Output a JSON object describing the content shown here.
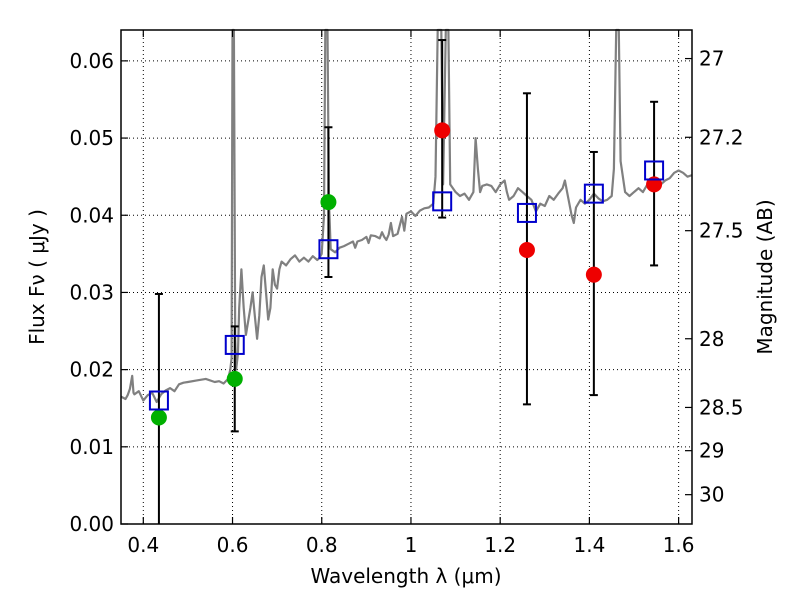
{
  "chart_data": {
    "type": "scatter",
    "xlabel": "Wavelength  λ (μm)",
    "ylabel": "Flux  Fν ( μJy )",
    "ylabel_right": "Magnitude (AB)",
    "xlim": [
      0.35,
      1.63
    ],
    "ylim": [
      0.0,
      0.064
    ],
    "grid": true,
    "x_ticks": [
      {
        "value": 0.4,
        "label": "0.4"
      },
      {
        "value": 0.6,
        "label": "0.6"
      },
      {
        "value": 0.8,
        "label": "0.8"
      },
      {
        "value": 1.0,
        "label": "1"
      },
      {
        "value": 1.2,
        "label": "1.2"
      },
      {
        "value": 1.4,
        "label": "1.4"
      },
      {
        "value": 1.6,
        "label": "1.6"
      }
    ],
    "y_ticks": [
      {
        "value": 0.0,
        "label": "0.00"
      },
      {
        "value": 0.01,
        "label": "0.01"
      },
      {
        "value": 0.02,
        "label": "0.02"
      },
      {
        "value": 0.03,
        "label": "0.03"
      },
      {
        "value": 0.04,
        "label": "0.04"
      },
      {
        "value": 0.05,
        "label": "0.05"
      },
      {
        "value": 0.06,
        "label": "0.06"
      }
    ],
    "right_ticks": [
      {
        "flux": 0.0603,
        "label": "27"
      },
      {
        "flux": 0.0501,
        "label": "27.2"
      },
      {
        "flux": 0.038,
        "label": "27.5"
      },
      {
        "flux": 0.024,
        "label": "28"
      },
      {
        "flux": 0.0151,
        "label": "28.5"
      },
      {
        "flux": 0.0095,
        "label": "29"
      },
      {
        "flux": 0.0038,
        "label": "30"
      }
    ],
    "series": [
      {
        "kind": "spectrum",
        "color": "#808080",
        "points": [
          [
            0.35,
            0.0165
          ],
          [
            0.36,
            0.0162
          ],
          [
            0.365,
            0.0167
          ],
          [
            0.37,
            0.0175
          ],
          [
            0.375,
            0.0192
          ],
          [
            0.378,
            0.017
          ],
          [
            0.38,
            0.0168
          ],
          [
            0.39,
            0.0172
          ],
          [
            0.4,
            0.016
          ],
          [
            0.41,
            0.0167
          ],
          [
            0.42,
            0.017
          ],
          [
            0.43,
            0.0158
          ],
          [
            0.44,
            0.0168
          ],
          [
            0.45,
            0.0173
          ],
          [
            0.46,
            0.0176
          ],
          [
            0.47,
            0.0172
          ],
          [
            0.48,
            0.0181
          ],
          [
            0.49,
            0.0183
          ],
          [
            0.5,
            0.0184
          ],
          [
            0.52,
            0.0186
          ],
          [
            0.54,
            0.0188
          ],
          [
            0.56,
            0.0184
          ],
          [
            0.57,
            0.0185
          ],
          [
            0.58,
            0.0182
          ],
          [
            0.59,
            0.0188
          ],
          [
            0.595,
            0.02
          ],
          [
            0.598,
            0.0215
          ],
          [
            0.6,
            0.064
          ],
          [
            0.603,
            0.064
          ],
          [
            0.606,
            0.024
          ],
          [
            0.608,
            0.02
          ],
          [
            0.612,
            0.022
          ],
          [
            0.615,
            0.028
          ],
          [
            0.62,
            0.033
          ],
          [
            0.625,
            0.028
          ],
          [
            0.63,
            0.0245
          ],
          [
            0.64,
            0.028
          ],
          [
            0.645,
            0.03
          ],
          [
            0.65,
            0.027
          ],
          [
            0.655,
            0.024
          ],
          [
            0.66,
            0.027
          ],
          [
            0.665,
            0.032
          ],
          [
            0.67,
            0.0335
          ],
          [
            0.675,
            0.03
          ],
          [
            0.68,
            0.0265
          ],
          [
            0.685,
            0.028
          ],
          [
            0.69,
            0.033
          ],
          [
            0.695,
            0.031
          ],
          [
            0.7,
            0.0305
          ],
          [
            0.705,
            0.033
          ],
          [
            0.71,
            0.034
          ],
          [
            0.72,
            0.0335
          ],
          [
            0.73,
            0.0343
          ],
          [
            0.74,
            0.0348
          ],
          [
            0.75,
            0.034
          ],
          [
            0.76,
            0.0345
          ],
          [
            0.77,
            0.034
          ],
          [
            0.78,
            0.0347
          ],
          [
            0.79,
            0.0342
          ],
          [
            0.795,
            0.0345
          ],
          [
            0.8,
            0.035
          ],
          [
            0.805,
            0.04
          ],
          [
            0.808,
            0.064
          ],
          [
            0.813,
            0.064
          ],
          [
            0.816,
            0.042
          ],
          [
            0.82,
            0.0356
          ],
          [
            0.83,
            0.0352
          ],
          [
            0.84,
            0.0358
          ],
          [
            0.85,
            0.036
          ],
          [
            0.86,
            0.0363
          ],
          [
            0.87,
            0.0366
          ],
          [
            0.875,
            0.0358
          ],
          [
            0.88,
            0.0366
          ],
          [
            0.89,
            0.0368
          ],
          [
            0.9,
            0.0372
          ],
          [
            0.905,
            0.0364
          ],
          [
            0.91,
            0.0374
          ],
          [
            0.92,
            0.0373
          ],
          [
            0.93,
            0.037
          ],
          [
            0.935,
            0.0378
          ],
          [
            0.94,
            0.0372
          ],
          [
            0.945,
            0.0368
          ],
          [
            0.95,
            0.0375
          ],
          [
            0.955,
            0.039
          ],
          [
            0.96,
            0.0373
          ],
          [
            0.97,
            0.0376
          ],
          [
            0.98,
            0.0398
          ],
          [
            0.985,
            0.038
          ],
          [
            0.99,
            0.0402
          ],
          [
            1.0,
            0.0405
          ],
          [
            1.01,
            0.0399
          ],
          [
            1.02,
            0.0406
          ],
          [
            1.03,
            0.0409
          ],
          [
            1.04,
            0.041
          ],
          [
            1.05,
            0.0415
          ],
          [
            1.055,
            0.045
          ],
          [
            1.06,
            0.064
          ],
          [
            1.068,
            0.064
          ],
          [
            1.072,
            0.044
          ],
          [
            1.078,
            0.064
          ],
          [
            1.084,
            0.064
          ],
          [
            1.088,
            0.044
          ],
          [
            1.1,
            0.043
          ],
          [
            1.11,
            0.0425
          ],
          [
            1.12,
            0.0428
          ],
          [
            1.13,
            0.042
          ],
          [
            1.14,
            0.043
          ],
          [
            1.145,
            0.05
          ],
          [
            1.15,
            0.046
          ],
          [
            1.155,
            0.043
          ],
          [
            1.16,
            0.0438
          ],
          [
            1.17,
            0.044
          ],
          [
            1.18,
            0.0438
          ],
          [
            1.19,
            0.043
          ],
          [
            1.2,
            0.044
          ],
          [
            1.21,
            0.0445
          ],
          [
            1.215,
            0.043
          ],
          [
            1.22,
            0.042
          ],
          [
            1.23,
            0.0425
          ],
          [
            1.24,
            0.0435
          ],
          [
            1.25,
            0.043
          ],
          [
            1.26,
            0.0425
          ],
          [
            1.27,
            0.042
          ],
          [
            1.28,
            0.0405
          ],
          [
            1.29,
            0.0415
          ],
          [
            1.3,
            0.0412
          ],
          [
            1.31,
            0.0425
          ],
          [
            1.32,
            0.042
          ],
          [
            1.33,
            0.0428
          ],
          [
            1.34,
            0.0435
          ],
          [
            1.345,
            0.0445
          ],
          [
            1.35,
            0.043
          ],
          [
            1.36,
            0.04
          ],
          [
            1.365,
            0.039
          ],
          [
            1.37,
            0.041
          ],
          [
            1.38,
            0.042
          ],
          [
            1.39,
            0.0415
          ],
          [
            1.4,
            0.042
          ],
          [
            1.41,
            0.0428
          ],
          [
            1.42,
            0.0422
          ],
          [
            1.43,
            0.0418
          ],
          [
            1.44,
            0.042
          ],
          [
            1.45,
            0.0425
          ],
          [
            1.455,
            0.046
          ],
          [
            1.46,
            0.064
          ],
          [
            1.466,
            0.064
          ],
          [
            1.47,
            0.047
          ],
          [
            1.48,
            0.043
          ],
          [
            1.49,
            0.0425
          ],
          [
            1.5,
            0.043
          ],
          [
            1.51,
            0.0435
          ],
          [
            1.52,
            0.043
          ],
          [
            1.53,
            0.044
          ],
          [
            1.54,
            0.0438
          ],
          [
            1.55,
            0.0445
          ],
          [
            1.56,
            0.044
          ],
          [
            1.57,
            0.0445
          ],
          [
            1.58,
            0.0448
          ],
          [
            1.59,
            0.0455
          ],
          [
            1.6,
            0.0458
          ],
          [
            1.61,
            0.0455
          ],
          [
            1.62,
            0.045
          ],
          [
            1.63,
            0.0452
          ]
        ]
      },
      {
        "kind": "observed",
        "marker": "circle",
        "points": [
          {
            "x": 0.435,
            "y": 0.0138,
            "err_lo": 0.0,
            "err_hi": 0.0298,
            "color": "#00b000"
          },
          {
            "x": 0.605,
            "y": 0.0188,
            "err_lo": 0.012,
            "err_hi": 0.0256,
            "color": "#00b000"
          },
          {
            "x": 0.815,
            "y": 0.0417,
            "err_lo": 0.032,
            "err_hi": 0.0514,
            "color": "#00b000"
          },
          {
            "x": 1.07,
            "y": 0.051,
            "err_lo": 0.0397,
            "err_hi": 0.0627,
            "color": "#ee0000"
          },
          {
            "x": 1.26,
            "y": 0.0355,
            "err_lo": 0.0155,
            "err_hi": 0.0558,
            "color": "#ee0000"
          },
          {
            "x": 1.41,
            "y": 0.0323,
            "err_lo": 0.0167,
            "err_hi": 0.0482,
            "color": "#ee0000"
          },
          {
            "x": 1.545,
            "y": 0.044,
            "err_lo": 0.0335,
            "err_hi": 0.0547,
            "color": "#ee0000"
          }
        ]
      },
      {
        "kind": "model",
        "marker": "square",
        "color": "#0000cc",
        "points": [
          {
            "x": 0.435,
            "y": 0.016
          },
          {
            "x": 0.605,
            "y": 0.0232
          },
          {
            "x": 0.815,
            "y": 0.0356
          },
          {
            "x": 1.07,
            "y": 0.0418
          },
          {
            "x": 1.26,
            "y": 0.0403
          },
          {
            "x": 1.41,
            "y": 0.0428
          },
          {
            "x": 1.545,
            "y": 0.0458
          }
        ]
      }
    ]
  }
}
